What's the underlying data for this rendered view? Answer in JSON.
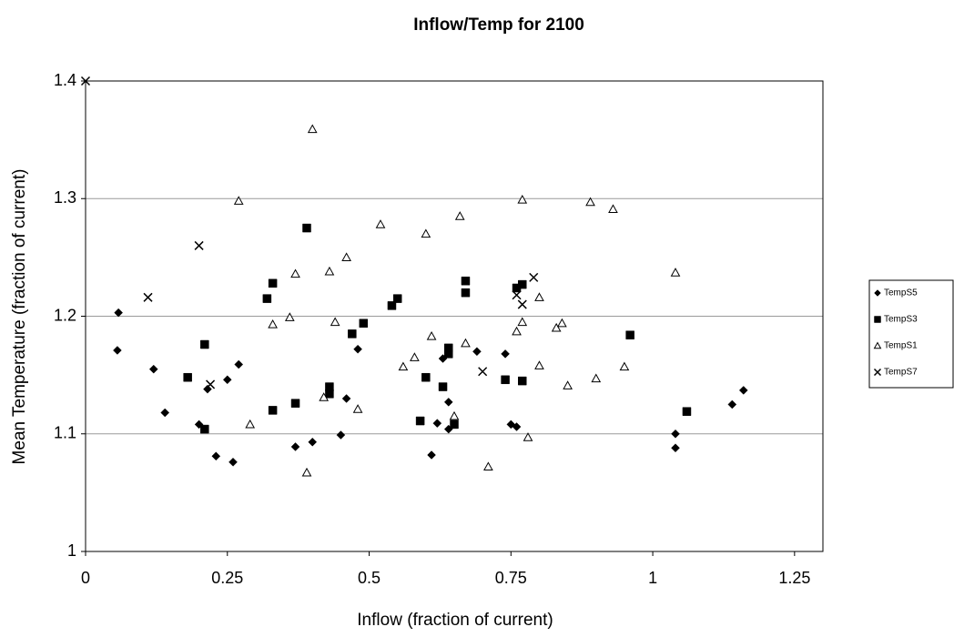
{
  "chart_data": {
    "type": "scatter",
    "title": "Inflow/Temp for 2100",
    "x_label": "Inflow (fraction of current)",
    "y_label": "Mean Temperature (fraction of current)",
    "xlim": [
      0,
      1.3
    ],
    "xticks": [
      0,
      0.25,
      0.5,
      0.75,
      1,
      1.25
    ],
    "ylim": [
      1,
      1.4
    ],
    "yticks": [
      1,
      1.1,
      1.2,
      1.3,
      1.4
    ],
    "grid": true,
    "legend": "right",
    "series": [
      {
        "name": "TempS5",
        "color": "#000000",
        "marker": "diamond",
        "x": [
          0.058,
          0.056,
          0.12,
          0.14,
          0.2,
          0.215,
          0.23,
          0.25,
          0.26,
          0.27,
          0.37,
          0.4,
          0.45,
          0.46,
          0.48,
          0.61,
          0.62,
          0.63,
          0.64,
          0.64,
          0.69,
          0.74,
          0.75,
          0.76,
          1.04,
          1.04,
          1.14,
          1.16
        ],
        "values": [
          1.203,
          1.171,
          1.155,
          1.118,
          1.108,
          1.138,
          1.081,
          1.146,
          1.076,
          1.159,
          1.089,
          1.093,
          1.099,
          1.13,
          1.172,
          1.082,
          1.109,
          1.164,
          1.104,
          1.127,
          1.17,
          1.168,
          1.108,
          1.106,
          1.1,
          1.088,
          1.125,
          1.137
        ]
      },
      {
        "name": "TempS3",
        "color": "#000000",
        "marker": "square",
        "x": [
          0.18,
          0.21,
          0.21,
          0.32,
          0.33,
          0.33,
          0.37,
          0.39,
          0.43,
          0.43,
          0.47,
          0.49,
          0.54,
          0.55,
          0.59,
          0.6,
          0.63,
          0.64,
          0.64,
          0.65,
          0.67,
          0.67,
          0.74,
          0.76,
          0.77,
          0.77,
          0.96,
          1.06
        ],
        "values": [
          1.148,
          1.176,
          1.104,
          1.215,
          1.228,
          1.12,
          1.126,
          1.275,
          1.14,
          1.134,
          1.185,
          1.194,
          1.209,
          1.215,
          1.111,
          1.148,
          1.14,
          1.173,
          1.168,
          1.108,
          1.23,
          1.22,
          1.146,
          1.224,
          1.227,
          1.145,
          1.184,
          1.119
        ]
      },
      {
        "name": "TempS1",
        "color": "#000000",
        "marker": "triangle",
        "x": [
          0.27,
          0.29,
          0.33,
          0.36,
          0.37,
          0.39,
          0.4,
          0.42,
          0.43,
          0.44,
          0.46,
          0.48,
          0.52,
          0.56,
          0.58,
          0.6,
          0.61,
          0.65,
          0.66,
          0.67,
          0.71,
          0.76,
          0.77,
          0.77,
          0.78,
          0.8,
          0.8,
          0.83,
          0.84,
          0.85,
          0.89,
          0.9,
          0.93,
          0.95,
          1.04
        ],
        "values": [
          1.298,
          1.108,
          1.193,
          1.199,
          1.236,
          1.067,
          1.359,
          1.131,
          1.238,
          1.195,
          1.25,
          1.121,
          1.278,
          1.157,
          1.165,
          1.27,
          1.183,
          1.115,
          1.285,
          1.177,
          1.072,
          1.187,
          1.299,
          1.195,
          1.097,
          1.216,
          1.158,
          1.19,
          1.194,
          1.141,
          1.297,
          1.147,
          1.291,
          1.157,
          1.237
        ]
      },
      {
        "name": "TempS7",
        "color": "#000000",
        "marker": "x",
        "x": [
          0,
          0.11,
          0.2,
          0.22,
          0.7,
          0.76,
          0.77,
          0.79
        ],
        "values": [
          1.4,
          1.216,
          1.26,
          1.142,
          1.153,
          1.218,
          1.21,
          1.233
        ]
      }
    ]
  }
}
